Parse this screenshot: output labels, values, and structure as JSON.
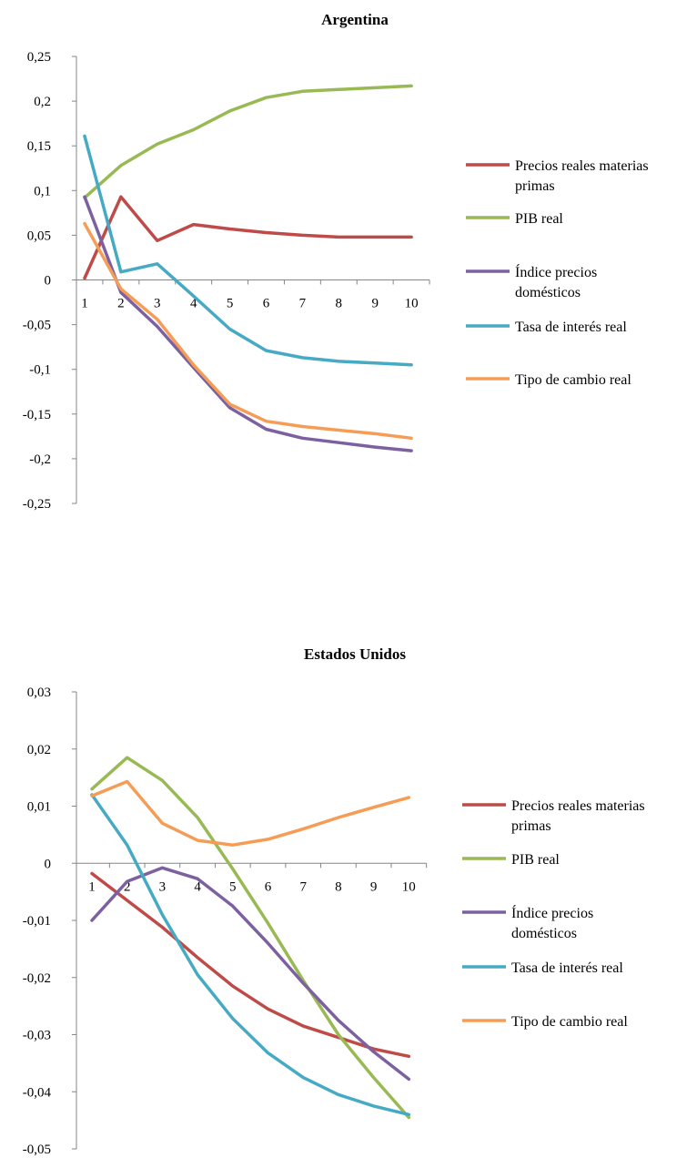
{
  "chart_data": [
    {
      "type": "line",
      "title": "Argentina",
      "xlabel": "",
      "ylabel": "",
      "x": [
        "1",
        "2",
        "3",
        "4",
        "5",
        "6",
        "7",
        "8",
        "9",
        "10"
      ],
      "y_ticks": [
        "0,25",
        "0,2",
        "0,15",
        "0,1",
        "0,05",
        "0",
        "-0,05",
        "-0,1",
        "-0,15",
        "-0,2",
        "-0,25"
      ],
      "ylim": [
        -0.25,
        0.25
      ],
      "grid": false,
      "legend_position": "right",
      "series": [
        {
          "name": "Precios reales materias primas",
          "legend_lines": [
            "Precios reales materias",
            "primas"
          ],
          "color": "#BE4B48",
          "values": [
            0.002,
            0.093,
            0.044,
            0.062,
            0.057,
            0.053,
            0.05,
            0.048,
            0.048,
            0.048
          ]
        },
        {
          "name": "PIB real",
          "legend_lines": [
            "PIB real"
          ],
          "color": "#98B954",
          "values": [
            0.092,
            0.128,
            0.152,
            0.168,
            0.189,
            0.204,
            0.211,
            0.213,
            0.215,
            0.217
          ]
        },
        {
          "name": "Índice precios domésticos",
          "legend_lines": [
            "Índice precios",
            "domésticos"
          ],
          "color": "#7D60A0",
          "values": [
            0.093,
            -0.014,
            -0.052,
            -0.098,
            -0.143,
            -0.167,
            -0.177,
            -0.182,
            -0.187,
            -0.191
          ]
        },
        {
          "name": "Tasa de interés real",
          "legend_lines": [
            "Tasa de interés real"
          ],
          "color": "#46AAC5",
          "values": [
            0.161,
            0.009,
            0.018,
            -0.018,
            -0.055,
            -0.079,
            -0.087,
            -0.091,
            -0.093,
            -0.095
          ]
        },
        {
          "name": "Tipo de cambio real",
          "legend_lines": [
            "Tipo de cambio real"
          ],
          "color": "#F59D56",
          "values": [
            0.063,
            -0.01,
            -0.044,
            -0.095,
            -0.139,
            -0.158,
            -0.164,
            -0.168,
            -0.172,
            -0.177
          ]
        }
      ]
    },
    {
      "type": "line",
      "title": "Estados Unidos",
      "xlabel": "",
      "ylabel": "",
      "x": [
        "1",
        "2",
        "3",
        "4",
        "5",
        "6",
        "7",
        "8",
        "9",
        "10"
      ],
      "y_ticks": [
        "0,03",
        "0,02",
        "0,01",
        "0",
        "-0,01",
        "-0,02",
        "-0,03",
        "-0,04",
        "-0,05"
      ],
      "ylim": [
        -0.05,
        0.03
      ],
      "grid": false,
      "legend_position": "right",
      "series": [
        {
          "name": "Precios reales materias primas",
          "legend_lines": [
            "Precios reales materias",
            "primas"
          ],
          "color": "#BE4B48",
          "values": [
            -0.0018,
            -0.0065,
            -0.0112,
            -0.0165,
            -0.0215,
            -0.0255,
            -0.0285,
            -0.0305,
            -0.0325,
            -0.0338
          ]
        },
        {
          "name": "PIB real",
          "legend_lines": [
            "PIB real"
          ],
          "color": "#98B954",
          "values": [
            0.013,
            0.0185,
            0.0145,
            0.008,
            -0.001,
            -0.0105,
            -0.0205,
            -0.03,
            -0.0375,
            -0.0445
          ]
        },
        {
          "name": "Índice precios domésticos",
          "legend_lines": [
            "Índice precios",
            "domésticos"
          ],
          "color": "#7D60A0",
          "values": [
            -0.01,
            -0.0032,
            -0.0008,
            -0.0027,
            -0.0075,
            -0.014,
            -0.021,
            -0.0275,
            -0.033,
            -0.0378
          ]
        },
        {
          "name": "Tasa de interés real",
          "legend_lines": [
            "Tasa de interés real"
          ],
          "color": "#46AAC5",
          "values": [
            0.012,
            0.0032,
            -0.009,
            -0.0195,
            -0.0272,
            -0.0332,
            -0.0375,
            -0.0405,
            -0.0425,
            -0.044
          ]
        },
        {
          "name": "Tipo de cambio real",
          "legend_lines": [
            "Tipo de cambio real"
          ],
          "color": "#F59D56",
          "values": [
            0.0118,
            0.0143,
            0.007,
            0.004,
            0.0032,
            0.0042,
            0.006,
            0.008,
            0.0098,
            0.0115
          ]
        }
      ]
    }
  ]
}
